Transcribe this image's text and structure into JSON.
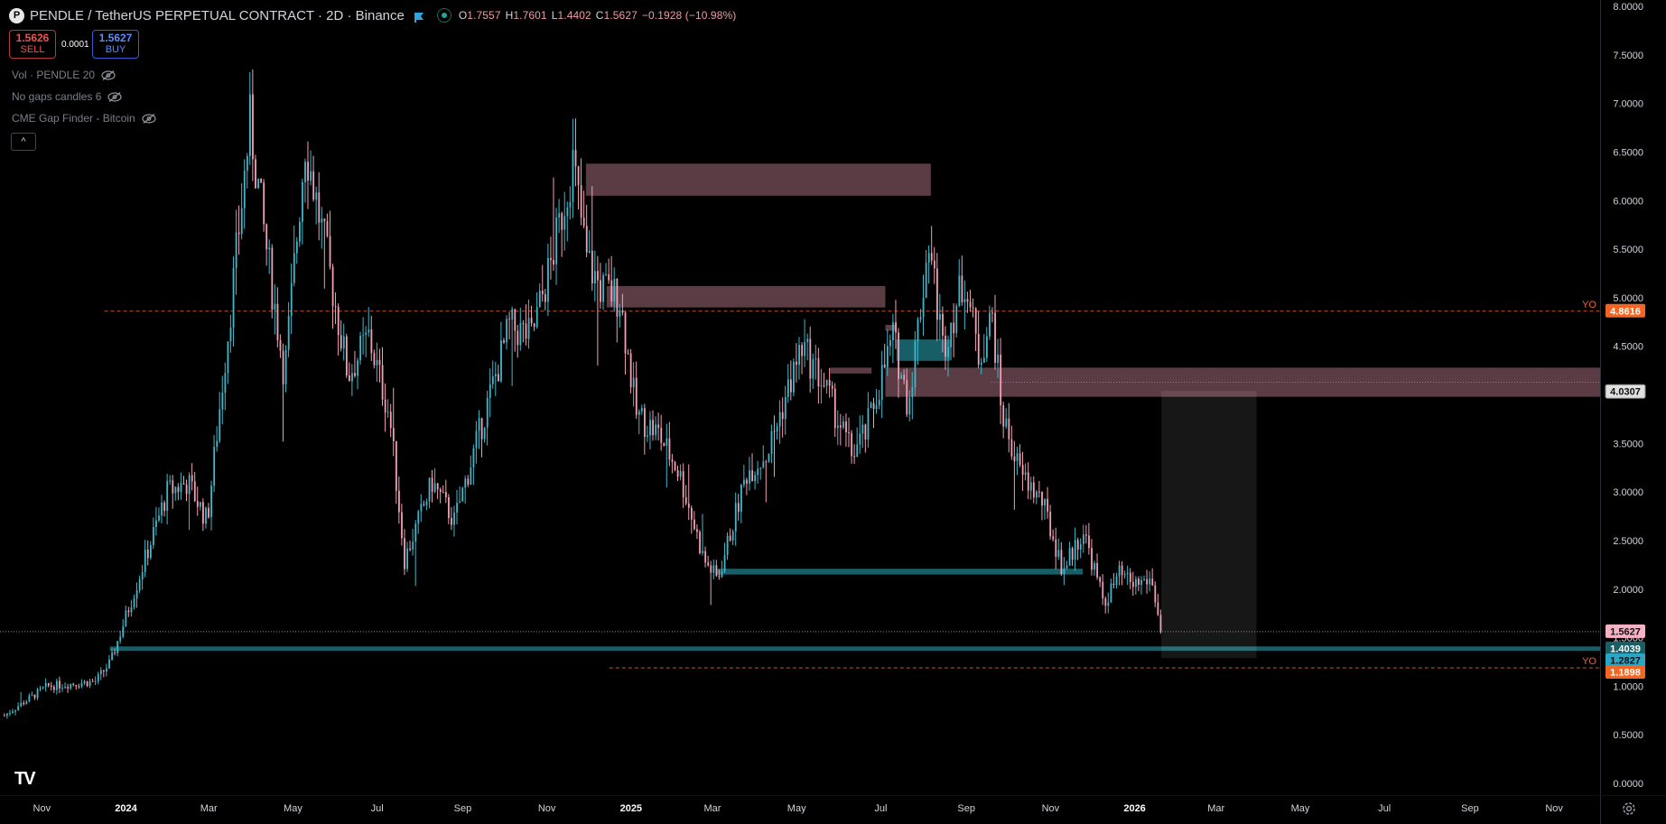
{
  "header": {
    "logo_letter": "P",
    "symbol": "PENDLE / TetherUS PERPETUAL CONTRACT · 2D · Binance",
    "ohlc": [
      {
        "k": "O",
        "v": "1.7557"
      },
      {
        "k": "H",
        "v": "1.7601"
      },
      {
        "k": "L",
        "v": "1.4402"
      },
      {
        "k": "C",
        "v": "1.5627"
      },
      {
        "k": "",
        "v": "−0.1928 (−10.98%)"
      }
    ],
    "flag_icon": "flag-icon",
    "status_icon": "market-open-icon"
  },
  "trade": {
    "sell_price": "1.5626",
    "sell_label": "SELL",
    "spread": "0.0001",
    "buy_price": "1.5627",
    "buy_label": "BUY"
  },
  "indicators": [
    {
      "label": "Vol · PENDLE 20",
      "icon": "eye-hidden-icon"
    },
    {
      "label": "No gaps candles 6",
      "icon": "eye-hidden-icon"
    },
    {
      "label": "CME Gap Finder - Bitcoin",
      "icon": "eye-hidden-icon"
    }
  ],
  "collapse_label": "^",
  "tv_logo": "TV",
  "settings_icon": "gear-icon",
  "colors": {
    "background": "#000000",
    "up": "#3fb8cc",
    "down": "#f2a0b4",
    "resistance_zone": "#7a4f5b",
    "support_zone": "#1c6e78",
    "yo_line": "#e8633a",
    "price_label_bg": "#f7b3c5"
  },
  "chart_data": {
    "type": "candlestick",
    "y_axis": {
      "ticks": [
        "8.0000",
        "7.5000",
        "7.0000",
        "6.5000",
        "6.0000",
        "5.5000",
        "5.0000",
        "4.5000",
        "4.0000",
        "3.5000",
        "3.0000",
        "2.5000",
        "2.0000",
        "1.5000",
        "1.0000",
        "0.5000",
        "0.0000"
      ],
      "ylim": [
        0,
        8
      ]
    },
    "x_axis": {
      "ticks": [
        "Nov",
        "2024",
        "Mar",
        "May",
        "Jul",
        "Sep",
        "Nov",
        "2025",
        "Mar",
        "May",
        "Jul",
        "Sep",
        "Nov",
        "2026",
        "Mar",
        "May",
        "Jul",
        "Sep",
        "Nov"
      ],
      "start": "2023-10-20",
      "end": "2026-12-20"
    },
    "price_path": [
      [
        "2023-10-20",
        0.7
      ],
      [
        "2023-11-20",
        1.0
      ],
      [
        "2023-12-25",
        1.05
      ],
      [
        "2024-01-05",
        1.25
      ],
      [
        "2024-01-25",
        2.1
      ],
      [
        "2024-02-15",
        3.0
      ],
      [
        "2024-03-01",
        3.1
      ],
      [
        "2024-03-15",
        2.7
      ],
      [
        "2024-04-01",
        4.9
      ],
      [
        "2024-04-15",
        6.8
      ],
      [
        "2024-04-25",
        5.7
      ],
      [
        "2024-05-10",
        4.2
      ],
      [
        "2024-05-25",
        6.6
      ],
      [
        "2024-06-10",
        5.4
      ],
      [
        "2024-06-25",
        4.2
      ],
      [
        "2024-07-10",
        4.6
      ],
      [
        "2024-07-25",
        3.8
      ],
      [
        "2024-08-05",
        2.3
      ],
      [
        "2024-08-25",
        3.1
      ],
      [
        "2024-09-10",
        2.7
      ],
      [
        "2024-09-30",
        3.7
      ],
      [
        "2024-10-20",
        4.7
      ],
      [
        "2024-11-05",
        4.6
      ],
      [
        "2024-11-20",
        5.4
      ],
      [
        "2024-12-05",
        6.4
      ],
      [
        "2024-12-15",
        5.4
      ],
      [
        "2024-12-25",
        5.1
      ],
      [
        "2025-01-08",
        5.0
      ],
      [
        "2025-01-20",
        3.8
      ],
      [
        "2025-02-05",
        3.6
      ],
      [
        "2025-02-20",
        3.2
      ],
      [
        "2025-03-10",
        2.3
      ],
      [
        "2025-03-20",
        2.1
      ],
      [
        "2025-04-10",
        3.2
      ],
      [
        "2025-04-25",
        3.4
      ],
      [
        "2025-05-20",
        4.5
      ],
      [
        "2025-06-05",
        4.1
      ],
      [
        "2025-06-25",
        3.4
      ],
      [
        "2025-07-05",
        3.6
      ],
      [
        "2025-07-25",
        4.6
      ],
      [
        "2025-08-05",
        3.9
      ],
      [
        "2025-08-20",
        5.6
      ],
      [
        "2025-08-30",
        4.5
      ],
      [
        "2025-09-15",
        5.2
      ],
      [
        "2025-09-25",
        4.4
      ],
      [
        "2025-10-05",
        4.8
      ],
      [
        "2025-10-12",
        3.8
      ],
      [
        "2025-10-25",
        3.2
      ],
      [
        "2025-11-10",
        2.9
      ],
      [
        "2025-11-25",
        2.2
      ],
      [
        "2025-12-10",
        2.6
      ],
      [
        "2025-12-25",
        1.85
      ],
      [
        "2026-01-05",
        2.15
      ],
      [
        "2026-01-15",
        2.05
      ],
      [
        "2026-01-28",
        2.1
      ],
      [
        "2026-02-05",
        1.56
      ]
    ],
    "zones": [
      {
        "kind": "resistance",
        "x0": "2024-12-15",
        "x1": "2025-08-22",
        "y0": 6.05,
        "y1": 6.38
      },
      {
        "kind": "resistance",
        "x0": "2024-12-30",
        "x1": "2025-07-20",
        "y0": 4.9,
        "y1": 5.12
      },
      {
        "kind": "resistance",
        "x0": "2025-07-20",
        "x1": "2026-12-20",
        "y0": 3.98,
        "y1": 4.28
      },
      {
        "kind": "resistance",
        "x0": "2025-06-10",
        "x1": "2025-07-10",
        "y0": 4.22,
        "y1": 4.28
      },
      {
        "kind": "resistance",
        "x0": "2025-07-20",
        "x1": "2025-07-28",
        "y0": 4.66,
        "y1": 4.72
      },
      {
        "kind": "support",
        "x0": "2025-07-28",
        "x1": "2025-09-05",
        "y0": 4.35,
        "y1": 4.57
      },
      {
        "kind": "support",
        "x0": "2025-03-20",
        "x1": "2025-12-10",
        "y0": 2.15,
        "y1": 2.21
      },
      {
        "kind": "support",
        "x0": "2024-01-05",
        "x1": "2026-12-20",
        "y0": 1.365,
        "y1": 1.41
      }
    ],
    "projection_box": {
      "x0": "2026-02-05",
      "x1": "2026-04-15",
      "y0": 1.29,
      "y1": 4.04
    },
    "lines": [
      {
        "kind": "yo",
        "y": 4.8616,
        "label": "YO",
        "price": "4.8616",
        "x0": "2024-01-01"
      },
      {
        "kind": "yo",
        "y": 1.1898,
        "label": "YO",
        "price": "1.1898",
        "x0": "2025-01-01"
      }
    ],
    "price_labels": [
      {
        "y": 4.8616,
        "text": "4.8616",
        "kind": "yo"
      },
      {
        "y": 4.0307,
        "text": "4.0307",
        "kind": "zone"
      },
      {
        "y": 1.5627,
        "text": "1.5627",
        "kind": "last"
      },
      {
        "y": 1.4039,
        "text": "1.4039",
        "kind": "support"
      },
      {
        "y": 1.2827,
        "text": "1.2827",
        "kind": "support2"
      },
      {
        "y": 1.1898,
        "text": "1.1898",
        "kind": "yo"
      }
    ],
    "last_price": 1.5627
  }
}
